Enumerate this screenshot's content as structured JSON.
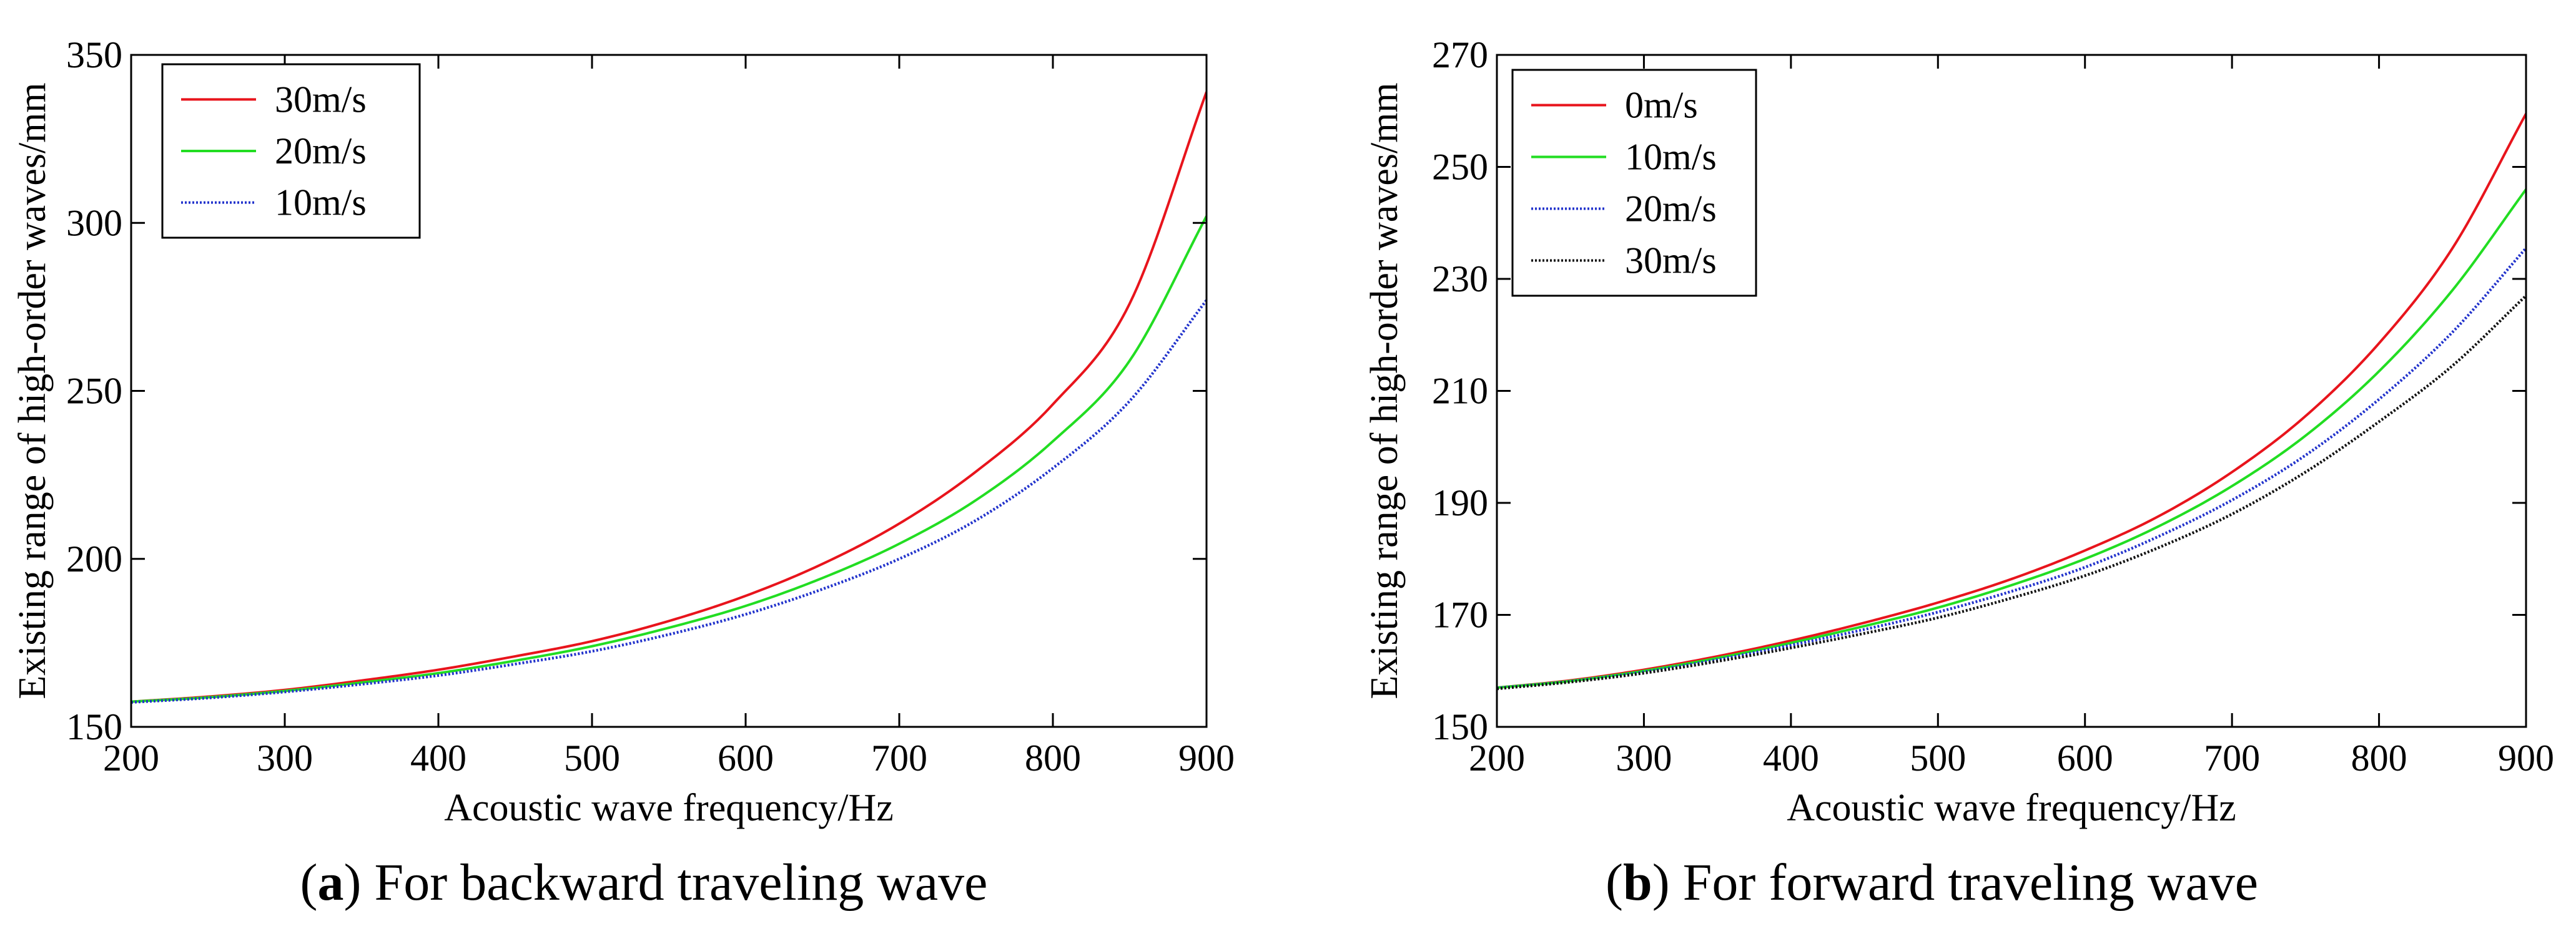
{
  "chart_data": [
    {
      "type": "line",
      "panel": "a",
      "caption_letter": "a",
      "caption_text": "For backward traveling wave",
      "xlabel": "Acoustic wave frequency/Hz",
      "ylabel": "Existing range of high-order waves/mm",
      "xlim": [
        200,
        900
      ],
      "ylim": [
        150,
        350
      ],
      "xticks": [
        200,
        300,
        400,
        500,
        600,
        700,
        800,
        900
      ],
      "yticks": [
        150,
        200,
        250,
        300,
        350
      ],
      "grid": false,
      "legend_position": "top-left",
      "x": [
        200,
        250,
        300,
        350,
        400,
        450,
        500,
        550,
        600,
        650,
        700,
        750,
        800,
        850,
        900
      ],
      "series": [
        {
          "name": "30m/s",
          "color": "#e8141c",
          "style": "solid",
          "values": [
            157.5,
            159.0,
            161.0,
            163.8,
            167.0,
            171.0,
            175.5,
            181.5,
            189.0,
            198.5,
            210.5,
            226.0,
            246.0,
            276.0,
            339.0
          ]
        },
        {
          "name": "20m/s",
          "color": "#22dd22",
          "style": "solid",
          "values": [
            157.5,
            158.8,
            160.7,
            163.2,
            166.0,
            169.7,
            174.0,
            179.5,
            186.0,
            194.3,
            204.5,
            217.5,
            235.0,
            259.0,
            302.0
          ]
        },
        {
          "name": "10m/s",
          "color": "#2233cc",
          "style": "dotted",
          "values": [
            157.3,
            158.6,
            160.4,
            162.7,
            165.3,
            168.7,
            172.5,
            177.5,
            183.5,
            191.0,
            200.0,
            211.5,
            227.0,
            247.0,
            277.0
          ]
        }
      ]
    },
    {
      "type": "line",
      "panel": "b",
      "caption_letter": "b",
      "caption_text": "For forward traveling wave",
      "xlabel": "Acoustic wave frequency/Hz",
      "ylabel": "Existing range of high-order waves/mm",
      "xlim": [
        200,
        900
      ],
      "ylim": [
        150,
        270
      ],
      "xticks": [
        200,
        300,
        400,
        500,
        600,
        700,
        800,
        900
      ],
      "yticks": [
        150,
        170,
        190,
        210,
        230,
        250,
        270
      ],
      "grid": false,
      "legend_position": "top-left",
      "x": [
        200,
        250,
        300,
        350,
        400,
        450,
        500,
        550,
        600,
        650,
        700,
        750,
        800,
        850,
        900
      ],
      "series": [
        {
          "name": "0m/s",
          "color": "#e8141c",
          "style": "solid",
          "values": [
            157.0,
            158.3,
            160.2,
            162.6,
            165.4,
            168.6,
            172.2,
            176.4,
            181.5,
            187.6,
            195.5,
            205.5,
            218.5,
            235.5,
            259.5
          ]
        },
        {
          "name": "10m/s",
          "color": "#22dd22",
          "style": "solid",
          "values": [
            157.0,
            158.2,
            160.0,
            162.3,
            165.0,
            168.0,
            171.3,
            175.3,
            180.0,
            185.8,
            193.0,
            202.0,
            213.5,
            228.0,
            246.0
          ]
        },
        {
          "name": "20m/s",
          "color": "#2233cc",
          "style": "dotted",
          "values": [
            156.9,
            158.1,
            159.8,
            162.0,
            164.6,
            167.4,
            170.5,
            174.2,
            178.5,
            184.0,
            190.5,
            198.5,
            208.5,
            220.5,
            235.5
          ]
        },
        {
          "name": "30m/s",
          "color": "#111111",
          "style": "dotted",
          "values": [
            156.8,
            158.0,
            159.6,
            161.7,
            164.1,
            166.7,
            169.5,
            173.0,
            177.0,
            182.0,
            188.0,
            195.5,
            204.5,
            214.5,
            227.0
          ]
        }
      ]
    }
  ]
}
